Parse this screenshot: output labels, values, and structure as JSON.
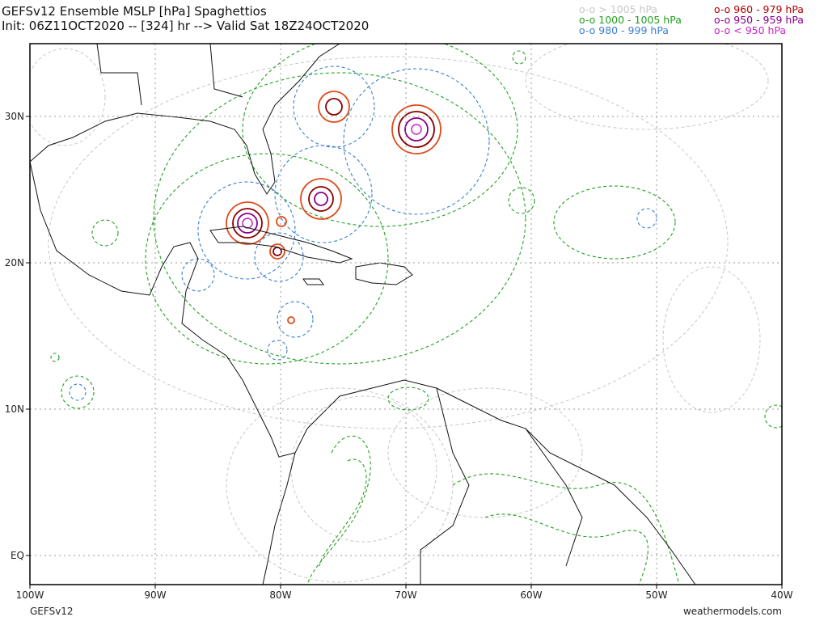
{
  "header": {
    "title": "GEFSv12 Ensemble MSLP [hPa] Spaghettios",
    "init": "Init: 06Z11OCT2020 -- [324] hr --> Valid Sat 18Z24OCT2020"
  },
  "legend": {
    "entries": [
      "o-o > 1005 hPa",
      "o-o 1000 - 1005 hPa",
      "o-o 980 - 999 hPa",
      "o-o 960 - 979 hPa",
      "o-o 950 - 959 hPa",
      "o-o < 950 hPa"
    ]
  },
  "axes": {
    "lon_labels": [
      "100W",
      "90W",
      "80W",
      "70W",
      "60W",
      "50W",
      "40W"
    ],
    "lat_labels": [
      "30N",
      "20N",
      "10N",
      "EQ"
    ]
  },
  "footer": {
    "model": "GEFSv12",
    "site": "weathermodels.com"
  }
}
